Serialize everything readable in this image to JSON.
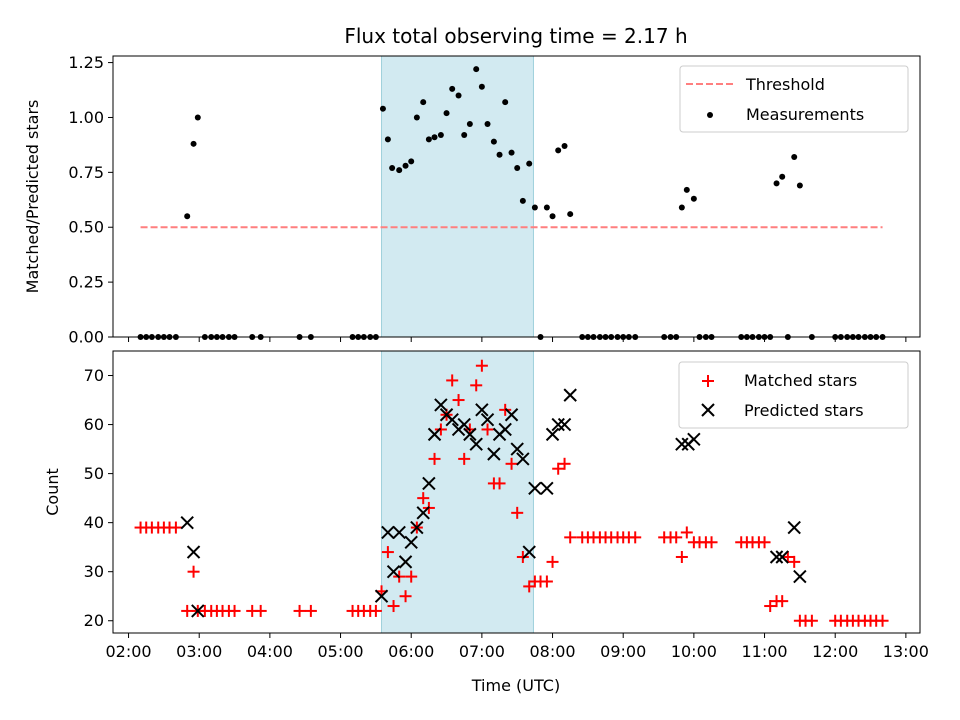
{
  "chart_data": {
    "type": "scatter",
    "title": "Flux total observing time = 2.17 h",
    "xlabel": "Time (UTC)",
    "x_ticks": [
      "02:00",
      "03:00",
      "04:00",
      "05:00",
      "06:00",
      "07:00",
      "08:00",
      "09:00",
      "10:00",
      "11:00",
      "12:00",
      "13:00"
    ],
    "xlim": [
      1.78,
      13.2
    ],
    "highlight_span": [
      5.58,
      7.73
    ],
    "top": {
      "ylabel": "Matched/Predicted stars",
      "ylim": [
        0,
        1.28
      ],
      "yticks": [
        "0.00",
        "0.25",
        "0.50",
        "0.75",
        "1.00",
        "1.25"
      ],
      "threshold": {
        "label": "Threshold",
        "value": 0.5,
        "x_range": [
          2.17,
          12.67
        ],
        "color": "#ff7f7f"
      },
      "measurements_label": "Measurements",
      "measurements": [
        [
          2.17,
          0
        ],
        [
          2.25,
          0
        ],
        [
          2.33,
          0
        ],
        [
          2.42,
          0
        ],
        [
          2.5,
          0
        ],
        [
          2.58,
          0
        ],
        [
          2.67,
          0
        ],
        [
          2.83,
          0.55
        ],
        [
          2.92,
          0.88
        ],
        [
          2.98,
          1.0
        ],
        [
          3.08,
          0
        ],
        [
          3.17,
          0
        ],
        [
          3.25,
          0
        ],
        [
          3.33,
          0
        ],
        [
          3.42,
          0
        ],
        [
          3.5,
          0
        ],
        [
          3.75,
          0
        ],
        [
          3.87,
          0
        ],
        [
          4.42,
          0
        ],
        [
          4.58,
          0
        ],
        [
          5.17,
          0
        ],
        [
          5.25,
          0
        ],
        [
          5.33,
          0
        ],
        [
          5.42,
          0
        ],
        [
          5.5,
          0
        ],
        [
          5.6,
          1.04
        ],
        [
          5.67,
          0.9
        ],
        [
          5.73,
          0.77
        ],
        [
          5.83,
          0.76
        ],
        [
          5.92,
          0.78
        ],
        [
          6.0,
          0.8
        ],
        [
          6.08,
          1.0
        ],
        [
          6.17,
          1.07
        ],
        [
          6.25,
          0.9
        ],
        [
          6.33,
          0.91
        ],
        [
          6.42,
          0.92
        ],
        [
          6.5,
          1.02
        ],
        [
          6.58,
          1.13
        ],
        [
          6.67,
          1.1
        ],
        [
          6.75,
          0.92
        ],
        [
          6.83,
          0.97
        ],
        [
          6.92,
          1.22
        ],
        [
          7.0,
          1.14
        ],
        [
          7.08,
          0.97
        ],
        [
          7.17,
          0.89
        ],
        [
          7.25,
          0.83
        ],
        [
          7.33,
          1.07
        ],
        [
          7.42,
          0.84
        ],
        [
          7.5,
          0.77
        ],
        [
          7.58,
          0.62
        ],
        [
          7.67,
          0.79
        ],
        [
          7.75,
          0.59
        ],
        [
          7.83,
          0
        ],
        [
          7.92,
          0.59
        ],
        [
          8.0,
          0.55
        ],
        [
          8.08,
          0.85
        ],
        [
          8.17,
          0.87
        ],
        [
          8.25,
          0.56
        ],
        [
          8.42,
          0
        ],
        [
          8.5,
          0
        ],
        [
          8.58,
          0
        ],
        [
          8.67,
          0
        ],
        [
          8.75,
          0
        ],
        [
          8.83,
          0
        ],
        [
          8.92,
          0
        ],
        [
          9.0,
          0
        ],
        [
          9.08,
          0
        ],
        [
          9.17,
          0
        ],
        [
          9.58,
          0
        ],
        [
          9.67,
          0
        ],
        [
          9.75,
          0
        ],
        [
          9.83,
          0.59
        ],
        [
          9.9,
          0.67
        ],
        [
          10.0,
          0.63
        ],
        [
          10.08,
          0
        ],
        [
          10.17,
          0
        ],
        [
          10.25,
          0
        ],
        [
          10.67,
          0
        ],
        [
          10.75,
          0
        ],
        [
          10.83,
          0
        ],
        [
          10.92,
          0
        ],
        [
          11.0,
          0
        ],
        [
          11.08,
          0
        ],
        [
          11.17,
          0.7
        ],
        [
          11.25,
          0.73
        ],
        [
          11.33,
          0
        ],
        [
          11.42,
          0.82
        ],
        [
          11.5,
          0.69
        ],
        [
          11.67,
          0
        ],
        [
          12.0,
          0
        ],
        [
          12.08,
          0
        ],
        [
          12.17,
          0
        ],
        [
          12.25,
          0
        ],
        [
          12.33,
          0
        ],
        [
          12.42,
          0
        ],
        [
          12.5,
          0
        ],
        [
          12.58,
          0
        ],
        [
          12.67,
          0
        ]
      ]
    },
    "bottom": {
      "ylabel": "Count",
      "ylim": [
        17.5,
        75
      ],
      "yticks": [
        "20",
        "30",
        "40",
        "50",
        "60",
        "70"
      ],
      "series": [
        {
          "name": "Matched stars",
          "marker": "plus",
          "color": "#ff0000",
          "points": [
            [
              2.17,
              39
            ],
            [
              2.25,
              39
            ],
            [
              2.33,
              39
            ],
            [
              2.42,
              39
            ],
            [
              2.5,
              39
            ],
            [
              2.58,
              39
            ],
            [
              2.67,
              39
            ],
            [
              2.83,
              22
            ],
            [
              2.92,
              30
            ],
            [
              2.98,
              22
            ],
            [
              3.08,
              22
            ],
            [
              3.17,
              22
            ],
            [
              3.25,
              22
            ],
            [
              3.33,
              22
            ],
            [
              3.42,
              22
            ],
            [
              3.5,
              22
            ],
            [
              3.75,
              22
            ],
            [
              3.87,
              22
            ],
            [
              4.42,
              22
            ],
            [
              4.58,
              22
            ],
            [
              5.17,
              22
            ],
            [
              5.25,
              22
            ],
            [
              5.33,
              22
            ],
            [
              5.42,
              22
            ],
            [
              5.5,
              22
            ],
            [
              5.58,
              26
            ],
            [
              5.67,
              34
            ],
            [
              5.75,
              23
            ],
            [
              5.83,
              29
            ],
            [
              5.92,
              25
            ],
            [
              6.0,
              29
            ],
            [
              6.08,
              39
            ],
            [
              6.17,
              45
            ],
            [
              6.25,
              43
            ],
            [
              6.33,
              53
            ],
            [
              6.42,
              59
            ],
            [
              6.5,
              62
            ],
            [
              6.58,
              69
            ],
            [
              6.67,
              65
            ],
            [
              6.75,
              53
            ],
            [
              6.83,
              59
            ],
            [
              6.92,
              68
            ],
            [
              7.0,
              72
            ],
            [
              7.08,
              59
            ],
            [
              7.17,
              48
            ],
            [
              7.25,
              48
            ],
            [
              7.33,
              63
            ],
            [
              7.42,
              52
            ],
            [
              7.5,
              42
            ],
            [
              7.58,
              33
            ],
            [
              7.67,
              27
            ],
            [
              7.75,
              28
            ],
            [
              7.83,
              28
            ],
            [
              7.92,
              28
            ],
            [
              8.0,
              32
            ],
            [
              8.08,
              51
            ],
            [
              8.17,
              52
            ],
            [
              8.25,
              37
            ],
            [
              8.42,
              37
            ],
            [
              8.5,
              37
            ],
            [
              8.58,
              37
            ],
            [
              8.67,
              37
            ],
            [
              8.75,
              37
            ],
            [
              8.83,
              37
            ],
            [
              8.92,
              37
            ],
            [
              9.0,
              37
            ],
            [
              9.08,
              37
            ],
            [
              9.17,
              37
            ],
            [
              9.58,
              37
            ],
            [
              9.67,
              37
            ],
            [
              9.75,
              37
            ],
            [
              9.83,
              33
            ],
            [
              9.9,
              38
            ],
            [
              10.0,
              36
            ],
            [
              10.08,
              36
            ],
            [
              10.17,
              36
            ],
            [
              10.25,
              36
            ],
            [
              10.67,
              36
            ],
            [
              10.75,
              36
            ],
            [
              10.83,
              36
            ],
            [
              10.92,
              36
            ],
            [
              11.0,
              36
            ],
            [
              11.08,
              23
            ],
            [
              11.17,
              24
            ],
            [
              11.25,
              24
            ],
            [
              11.33,
              33
            ],
            [
              11.42,
              32
            ],
            [
              11.5,
              20
            ],
            [
              11.58,
              20
            ],
            [
              11.67,
              20
            ],
            [
              12.0,
              20
            ],
            [
              12.08,
              20
            ],
            [
              12.17,
              20
            ],
            [
              12.25,
              20
            ],
            [
              12.33,
              20
            ],
            [
              12.42,
              20
            ],
            [
              12.5,
              20
            ],
            [
              12.58,
              20
            ],
            [
              12.67,
              20
            ]
          ]
        },
        {
          "name": "Predicted stars",
          "marker": "x",
          "color": "#000000",
          "points": [
            [
              2.83,
              40
            ],
            [
              2.92,
              34
            ],
            [
              2.98,
              22
            ],
            [
              5.58,
              25
            ],
            [
              5.67,
              38
            ],
            [
              5.75,
              30
            ],
            [
              5.83,
              38
            ],
            [
              5.92,
              32
            ],
            [
              6.0,
              36
            ],
            [
              6.08,
              39
            ],
            [
              6.17,
              42
            ],
            [
              6.25,
              48
            ],
            [
              6.33,
              58
            ],
            [
              6.42,
              64
            ],
            [
              6.5,
              62
            ],
            [
              6.58,
              61
            ],
            [
              6.67,
              59
            ],
            [
              6.75,
              60
            ],
            [
              6.83,
              58
            ],
            [
              6.92,
              56
            ],
            [
              7.0,
              63
            ],
            [
              7.08,
              61
            ],
            [
              7.17,
              54
            ],
            [
              7.25,
              58
            ],
            [
              7.33,
              59
            ],
            [
              7.42,
              62
            ],
            [
              7.5,
              55
            ],
            [
              7.58,
              53
            ],
            [
              7.67,
              34
            ],
            [
              7.75,
              47
            ],
            [
              7.92,
              47
            ],
            [
              8.0,
              58
            ],
            [
              8.08,
              60
            ],
            [
              8.17,
              60
            ],
            [
              8.25,
              66
            ],
            [
              9.83,
              56
            ],
            [
              9.92,
              56
            ],
            [
              10.0,
              57
            ],
            [
              11.17,
              33
            ],
            [
              11.25,
              33
            ],
            [
              11.42,
              39
            ],
            [
              11.5,
              29
            ]
          ]
        }
      ]
    }
  }
}
